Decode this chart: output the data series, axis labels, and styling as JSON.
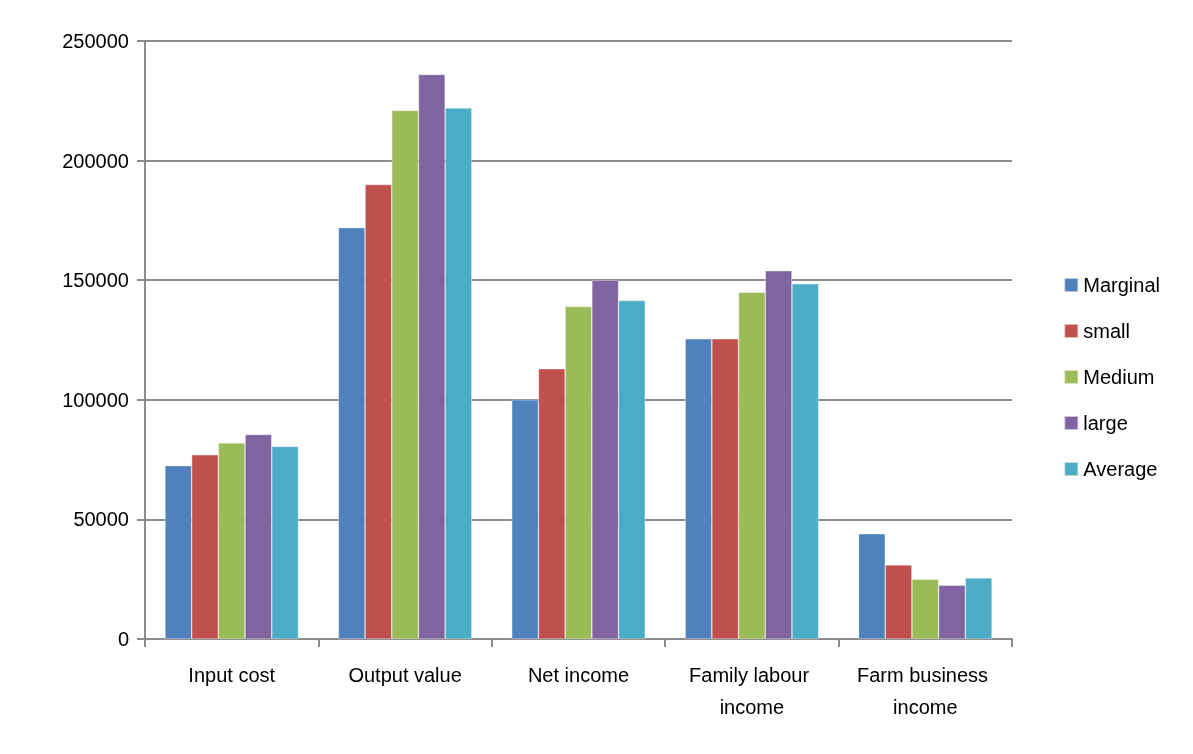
{
  "chart_data": {
    "type": "bar",
    "categories": [
      "Input cost",
      "Output value",
      "Net income",
      "Family labour income",
      "Farm business income"
    ],
    "series": [
      {
        "name": "Marginal",
        "color": "#4f81bd",
        "values": [
          72500,
          172000,
          100000,
          125500,
          44000
        ]
      },
      {
        "name": "small",
        "color": "#c0504d",
        "values": [
          77000,
          190000,
          113000,
          125500,
          31000
        ]
      },
      {
        "name": "Medium",
        "color": "#9bbb59",
        "values": [
          82000,
          221000,
          139000,
          145000,
          25000
        ]
      },
      {
        "name": "large",
        "color": "#8064a2",
        "values": [
          85500,
          236000,
          150000,
          154000,
          22500
        ]
      },
      {
        "name": "Average",
        "color": "#4bacc6",
        "values": [
          80500,
          222000,
          141500,
          148500,
          25500
        ]
      }
    ],
    "ylim": [
      0,
      250000
    ],
    "yticks": [
      0,
      50000,
      100000,
      150000,
      200000,
      250000
    ],
    "grid": "y",
    "legend": "right"
  }
}
